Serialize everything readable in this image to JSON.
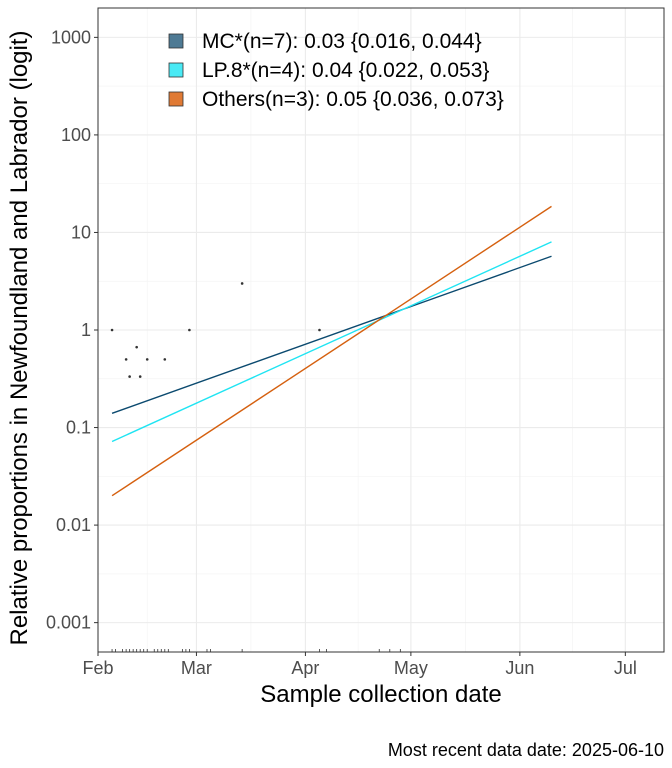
{
  "chart_data": {
    "type": "line",
    "ylabel": "Relative proportions in Newfoundland and Labrador (logit)",
    "xlabel": "Sample collection date",
    "caption": "Most recent data date: 2025-06-10",
    "y_scale": "log10",
    "ylim": [
      0.0005,
      2000
    ],
    "xlim": [
      "2025-02-01",
      "2025-07-12"
    ],
    "y_ticks": [
      {
        "value": 0.001,
        "label": "0.001"
      },
      {
        "value": 0.01,
        "label": "0.01"
      },
      {
        "value": 0.1,
        "label": "0.1"
      },
      {
        "value": 1,
        "label": "1"
      },
      {
        "value": 10,
        "label": "10"
      },
      {
        "value": 100,
        "label": "100"
      },
      {
        "value": 1000,
        "label": "1000"
      }
    ],
    "x_ticks": [
      {
        "value": "2025-02-01",
        "label": "Feb"
      },
      {
        "value": "2025-03-01",
        "label": "Mar"
      },
      {
        "value": "2025-04-01",
        "label": "Apr"
      },
      {
        "value": "2025-05-01",
        "label": "May"
      },
      {
        "value": "2025-06-01",
        "label": "Jun"
      },
      {
        "value": "2025-07-01",
        "label": "Jul"
      }
    ],
    "grid": true,
    "legend_position": "top-left",
    "series": [
      {
        "name": "MC*(n=7): 0.03 {0.016, 0.044}",
        "color": "#0b4a6f",
        "legend_color": "#4e7a94",
        "line": [
          {
            "x": "2025-02-05",
            "y": 0.14
          },
          {
            "x": "2025-06-10",
            "y": 5.7
          }
        ]
      },
      {
        "name": "LP.8*(n=4): 0.04 {0.022, 0.053}",
        "color": "#1fe4f2",
        "legend_color": "#49eaf5",
        "line": [
          {
            "x": "2025-02-05",
            "y": 0.072
          },
          {
            "x": "2025-06-10",
            "y": 8.0
          }
        ]
      },
      {
        "name": "Others(n=3): 0.05 {0.036, 0.073}",
        "color": "#d5600f",
        "legend_color": "#e07a34",
        "line": [
          {
            "x": "2025-02-05",
            "y": 0.02
          },
          {
            "x": "2025-06-10",
            "y": 18.5
          }
        ]
      }
    ],
    "points": [
      {
        "x": "2025-02-05",
        "y": 1
      },
      {
        "x": "2025-02-09",
        "y": 0.5
      },
      {
        "x": "2025-02-10",
        "y": 0.333
      },
      {
        "x": "2025-02-12",
        "y": 0.667
      },
      {
        "x": "2025-02-13",
        "y": 0.333
      },
      {
        "x": "2025-02-15",
        "y": 0.5
      },
      {
        "x": "2025-02-20",
        "y": 0.5
      },
      {
        "x": "2025-02-27",
        "y": 1
      },
      {
        "x": "2025-03-14",
        "y": 3
      },
      {
        "x": "2025-04-05",
        "y": 1
      }
    ],
    "rug_dates": [
      "2025-02-05",
      "2025-02-06",
      "2025-02-08",
      "2025-02-09",
      "2025-02-10",
      "2025-02-11",
      "2025-02-12",
      "2025-02-13",
      "2025-02-14",
      "2025-02-15",
      "2025-02-17",
      "2025-02-18",
      "2025-02-19",
      "2025-02-20",
      "2025-02-21",
      "2025-02-25",
      "2025-02-26",
      "2025-02-27",
      "2025-03-04",
      "2025-03-05",
      "2025-03-14",
      "2025-04-05",
      "2025-04-07",
      "2025-04-22",
      "2025-04-25",
      "2025-04-28"
    ]
  }
}
